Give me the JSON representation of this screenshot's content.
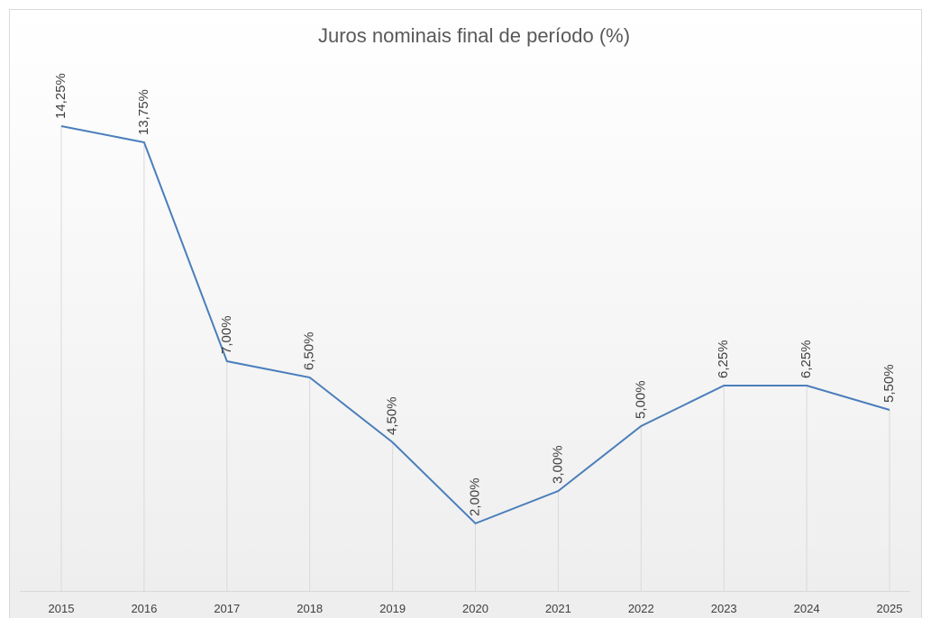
{
  "chart_data": {
    "type": "line",
    "title": "Juros nominais final de período (%)",
    "categories": [
      "2015",
      "2016",
      "2017",
      "2018",
      "2019",
      "2020",
      "2021",
      "2022",
      "2023",
      "2024",
      "2025"
    ],
    "series": [
      {
        "name": "Juros nominais",
        "color": "#4a7ebb",
        "values": [
          14.25,
          13.75,
          7.0,
          6.5,
          4.5,
          2.0,
          3.0,
          5.0,
          6.25,
          6.25,
          5.5
        ],
        "value_labels": [
          "14,25%",
          "13,75%",
          "7,00%",
          "6,50%",
          "4,50%",
          "2,00%",
          "3,00%",
          "5,00%",
          "6,25%",
          "6,25%",
          "5,50%"
        ]
      }
    ],
    "ylim": [
      0,
      16
    ],
    "drop_lines": true
  }
}
